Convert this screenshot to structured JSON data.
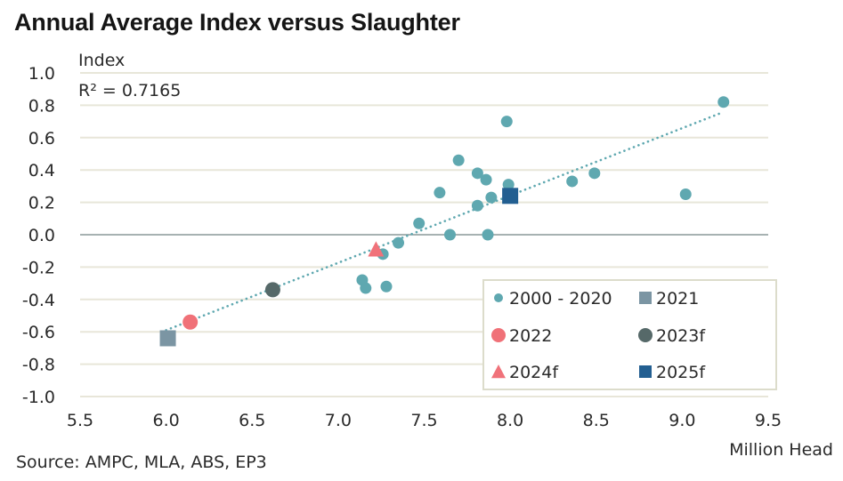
{
  "chart_data": {
    "type": "scatter",
    "title": "Annual Average Index versus Slaughter",
    "ylabel": "Index",
    "xlabel": "Million Head",
    "annotation": "R² = 0.7165",
    "source": "Source: AMPC, MLA, ABS, EP3",
    "xlim": [
      5.5,
      9.5
    ],
    "ylim": [
      -1.0,
      1.0
    ],
    "x_ticks": [
      "5.5",
      "6.0",
      "6.5",
      "7.0",
      "7.5",
      "8.0",
      "8.5",
      "9.0",
      "9.5"
    ],
    "y_ticks": [
      "1.0",
      "0.8",
      "0.6",
      "0.4",
      "0.2",
      "0.0",
      "-0.2",
      "-0.4",
      "-0.6",
      "-0.8",
      "-1.0"
    ],
    "grid": "horizontal",
    "legend_position": "bottom-right",
    "trendline": {
      "style": "dotted",
      "color": "#5fa8b0",
      "from": [
        6.0,
        -0.59
      ],
      "to": [
        9.22,
        0.75
      ]
    },
    "series": [
      {
        "name": "2000 - 2020",
        "marker": "circle",
        "color": "#5fa8b0",
        "points": [
          [
            7.7,
            0.46
          ],
          [
            7.81,
            0.38
          ],
          [
            7.86,
            0.34
          ],
          [
            7.99,
            0.31
          ],
          [
            7.59,
            0.26
          ],
          [
            7.89,
            0.23
          ],
          [
            7.81,
            0.18
          ],
          [
            7.47,
            0.07
          ],
          [
            7.65,
            0.0
          ],
          [
            7.87,
            0.0
          ],
          [
            7.35,
            -0.05
          ],
          [
            7.26,
            -0.12
          ],
          [
            7.14,
            -0.28
          ],
          [
            7.16,
            -0.33
          ],
          [
            7.28,
            -0.32
          ],
          [
            7.98,
            0.7
          ],
          [
            8.36,
            0.33
          ],
          [
            8.49,
            0.38
          ],
          [
            9.02,
            0.25
          ],
          [
            9.24,
            0.82
          ]
        ]
      },
      {
        "name": "2021",
        "marker": "square",
        "color": "#7b95a3",
        "points": [
          [
            6.01,
            -0.64
          ]
        ]
      },
      {
        "name": "2022",
        "marker": "circle-large",
        "color": "#f07178",
        "points": [
          [
            6.14,
            -0.54
          ]
        ]
      },
      {
        "name": "2023f",
        "marker": "circle-large",
        "color": "#566969",
        "points": [
          [
            6.62,
            -0.34
          ]
        ]
      },
      {
        "name": "2024f",
        "marker": "triangle",
        "color": "#f0727a",
        "points": [
          [
            7.22,
            -0.09
          ]
        ]
      },
      {
        "name": "2025f",
        "marker": "square",
        "color": "#235f91",
        "points": [
          [
            8.0,
            0.24
          ]
        ]
      }
    ]
  }
}
